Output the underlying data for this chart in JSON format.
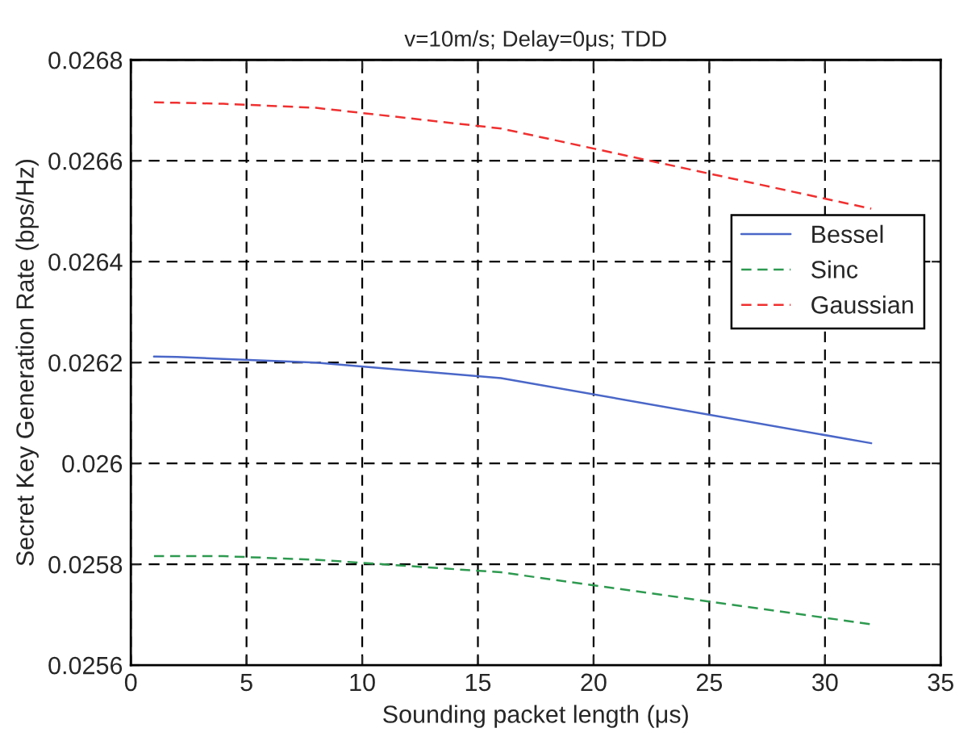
{
  "chart_data": {
    "type": "line",
    "title": "v=10m/s; Delay=0μs; TDD",
    "xlabel": "Sounding packet length (μs)",
    "ylabel": "Secret Key Generation Rate (bps/Hz)",
    "x": [
      1,
      2,
      4,
      8,
      16,
      32
    ],
    "series": [
      {
        "name": "Bessel",
        "color": "#4a67c8",
        "line_style": "solid",
        "values": [
          0.026212,
          0.026211,
          0.026207,
          0.0262,
          0.026169,
          0.02604
        ]
      },
      {
        "name": "Sinc",
        "color": "#2e9a50",
        "line_style": "dashed",
        "values": [
          0.025816,
          0.025816,
          0.025816,
          0.025809,
          0.025784,
          0.025681
        ]
      },
      {
        "name": "Gaussian",
        "color": "#f03030",
        "line_style": "dashed",
        "values": [
          0.026716,
          0.026715,
          0.026713,
          0.026705,
          0.026664,
          0.026505
        ]
      }
    ],
    "xlim": [
      0,
      35
    ],
    "xticks": [
      0,
      5,
      10,
      15,
      20,
      25,
      30,
      35
    ],
    "ylim": [
      0.0256,
      0.0268
    ],
    "yticks": [
      0.0256,
      0.0258,
      0.026,
      0.0262,
      0.0264,
      0.0266,
      0.0268
    ],
    "grid": true,
    "legend": "right",
    "marker": "none"
  }
}
